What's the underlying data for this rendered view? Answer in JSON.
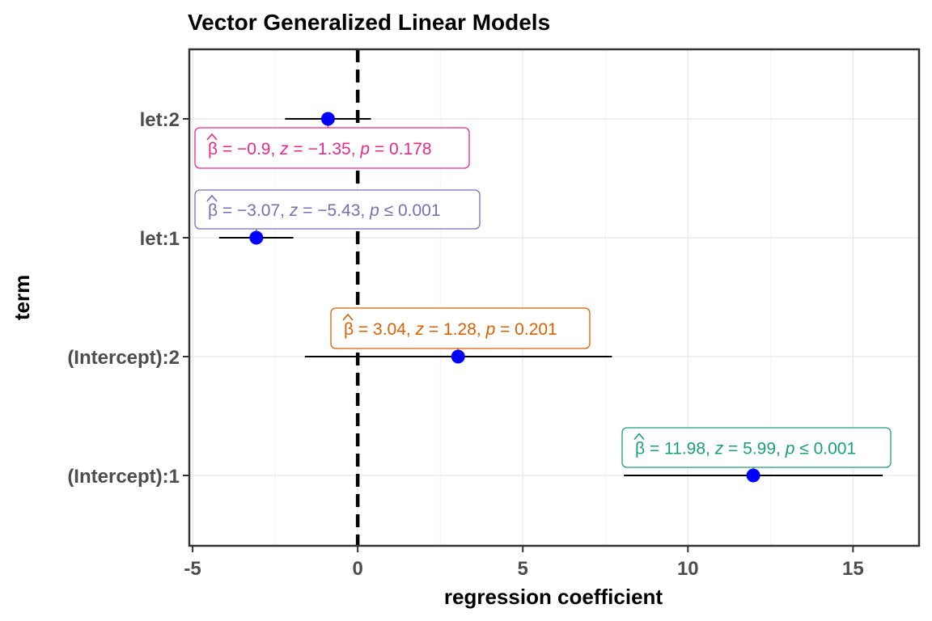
{
  "chart_data": {
    "type": "dot-and-whisker",
    "title": "Vector Generalized Linear Models",
    "xlabel": "regression coefficient",
    "ylabel": "term",
    "xlim": [
      -5.1,
      17
    ],
    "xticks": [
      "-5",
      "0",
      "5",
      "10",
      "15"
    ],
    "xtick_values": [
      -5,
      0,
      5,
      10,
      15
    ],
    "reference_line": 0,
    "point_color": "#0000ff",
    "terms": [
      {
        "label": "(Intercept):1",
        "estimate": 11.98,
        "conf_low": 8.06,
        "conf_high": 15.9,
        "color": "#1b9e77",
        "annotation": {
          "beta": "11.98",
          "z": "5.99",
          "p_op": "≤",
          "p": "0.001"
        }
      },
      {
        "label": "(Intercept):2",
        "estimate": 3.04,
        "conf_low": -1.6,
        "conf_high": 7.7,
        "color": "#d95f02",
        "annotation": {
          "beta": "3.04",
          "z": "1.28",
          "p_op": "=",
          "p": "0.201"
        }
      },
      {
        "label": "let:1",
        "estimate": -3.07,
        "conf_low": -4.2,
        "conf_high": -1.95,
        "color": "#7570b3",
        "annotation": {
          "beta": "−3.07",
          "z": "−5.43",
          "p_op": "≤",
          "p": "0.001"
        }
      },
      {
        "label": "let:2",
        "estimate": -0.9,
        "conf_low": -2.2,
        "conf_high": 0.4,
        "color": "#e7298a",
        "annotation": {
          "beta": "−0.9",
          "z": "−1.35",
          "p_op": "=",
          "p": "0.178"
        }
      }
    ]
  }
}
